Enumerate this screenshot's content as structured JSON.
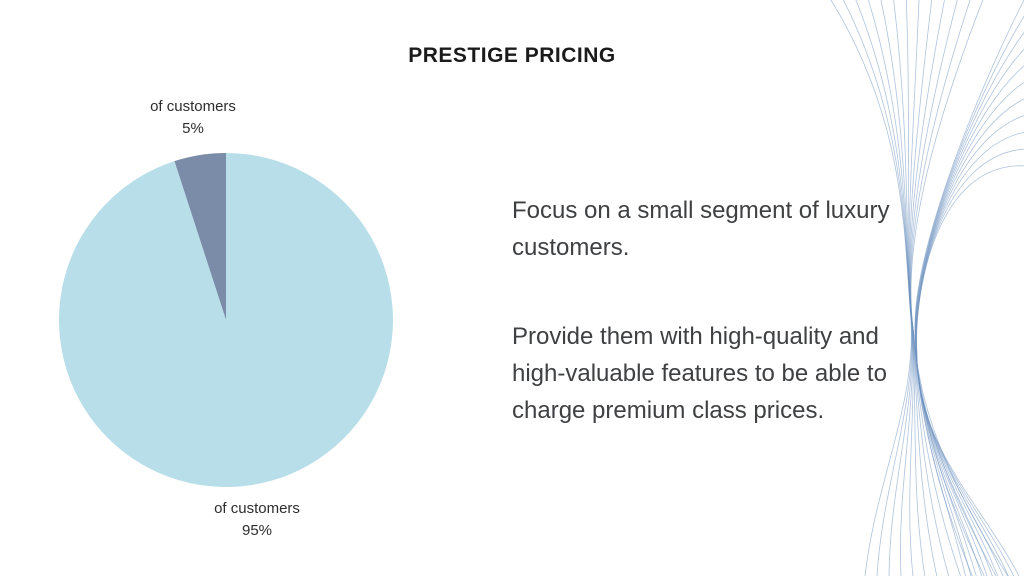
{
  "slide": {
    "title": "PRESTIGE PRICING",
    "paragraphs": [
      "Focus on a small segment of luxury customers.",
      "Provide them with high-quality and high-valuable features to be able to charge premium class prices."
    ]
  },
  "chart_data": {
    "type": "pie",
    "title": "",
    "slices": [
      {
        "label": "of customers",
        "percent_label": "5%",
        "value": 5,
        "color": "#7A8CA8"
      },
      {
        "label": "of customers",
        "percent_label": "95%",
        "value": 95,
        "color": "#B8DEEA"
      }
    ],
    "start_angle_deg": -18,
    "labels_position": "outside",
    "legend": false
  },
  "decoration": {
    "kind": "wave-lines",
    "color": "#6E92C0",
    "opacity": 0.55,
    "line_count": 24
  }
}
